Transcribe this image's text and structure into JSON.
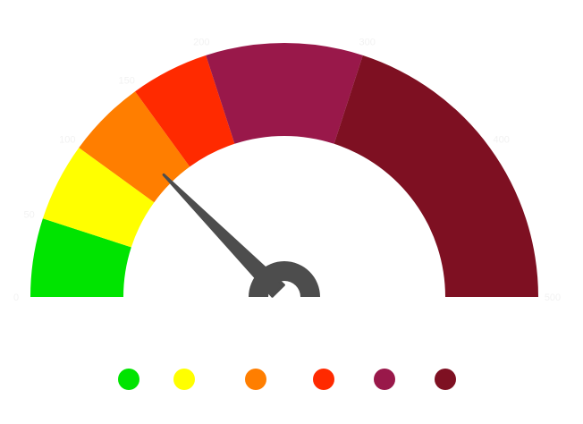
{
  "chart_data": {
    "type": "gauge",
    "min": 0,
    "max": 500,
    "value": 126,
    "bands": [
      {
        "from": 0,
        "to": 50,
        "color": "#00e400"
      },
      {
        "from": 50,
        "to": 100,
        "color": "#ffff00"
      },
      {
        "from": 100,
        "to": 150,
        "color": "#ff7e00"
      },
      {
        "from": 150,
        "to": 200,
        "color": "#ff2a00"
      },
      {
        "from": 200,
        "to": 300,
        "color": "#99184a"
      },
      {
        "from": 300,
        "to": 500,
        "color": "#7e1022"
      }
    ],
    "needle_color": "#4d4d4d",
    "tick_labels": [
      "0",
      "50",
      "100",
      "150",
      "200",
      "300",
      "400",
      "500"
    ]
  }
}
